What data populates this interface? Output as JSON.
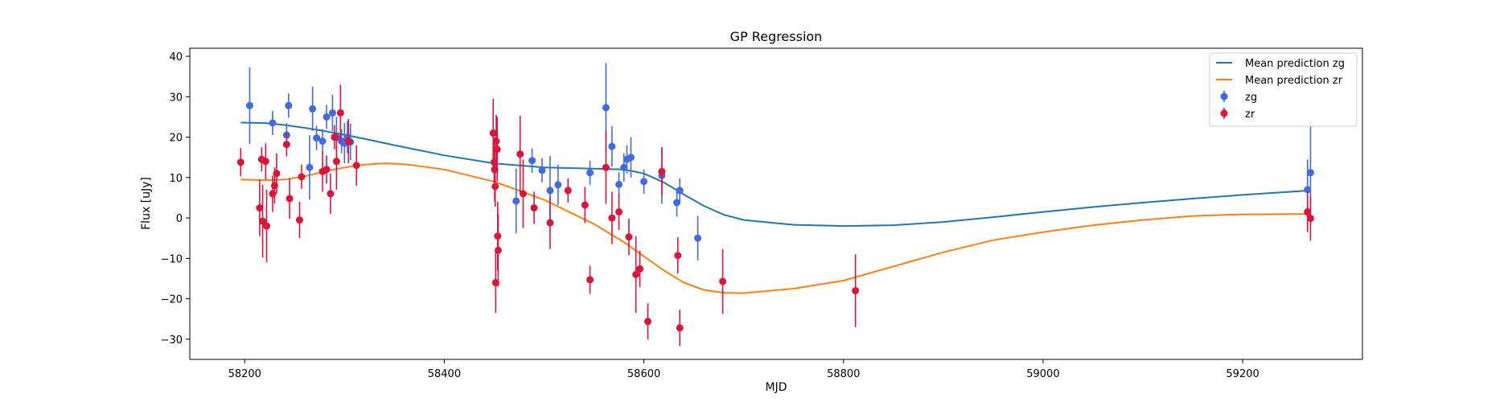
{
  "chart_data": {
    "type": "scatter",
    "title": "GP Regression",
    "xlabel": "MJD",
    "ylabel": "Flux [uJy]",
    "xlim": [
      58145,
      59320
    ],
    "ylim": [
      -35,
      42
    ],
    "x_ticks": [
      58200,
      58400,
      58600,
      58800,
      59000,
      59200
    ],
    "y_ticks": [
      -30,
      -20,
      -10,
      0,
      10,
      20,
      30,
      40
    ],
    "grid": false,
    "legend_position": "top-right",
    "lines": [
      {
        "name": "Mean prediction zg",
        "color": "#1f77b4",
        "x": [
          58196,
          58220,
          58240,
          58260,
          58280,
          58300,
          58320,
          58350,
          58400,
          58450,
          58500,
          58550,
          58580,
          58600,
          58620,
          58640,
          58660,
          58680,
          58700,
          58750,
          58800,
          58850,
          58900,
          58950,
          59000,
          59050,
          59100,
          59150,
          59200,
          59268
        ],
        "y": [
          23.6,
          23.5,
          23.0,
          22.3,
          21.5,
          20.6,
          19.6,
          18.0,
          15.5,
          13.5,
          12.5,
          12.2,
          12.0,
          11.0,
          8.8,
          5.8,
          3.0,
          0.8,
          -0.5,
          -1.7,
          -2.0,
          -1.8,
          -1.0,
          0.2,
          1.5,
          2.7,
          3.8,
          4.8,
          5.7,
          6.8
        ]
      },
      {
        "name": "Mean prediction zr",
        "color": "#ff7f0e",
        "x": [
          58196,
          58220,
          58240,
          58260,
          58280,
          58300,
          58320,
          58340,
          58360,
          58400,
          58450,
          58500,
          58550,
          58580,
          58600,
          58620,
          58640,
          58660,
          58680,
          58700,
          58750,
          58800,
          58850,
          58900,
          58950,
          59000,
          59050,
          59100,
          59150,
          59200,
          59268
        ],
        "y": [
          9.5,
          9.3,
          9.5,
          10.3,
          11.5,
          12.5,
          13.2,
          13.5,
          13.3,
          12.0,
          9.0,
          4.5,
          -1.5,
          -6.0,
          -9.5,
          -13.0,
          -16.0,
          -17.8,
          -18.5,
          -18.6,
          -17.5,
          -15.5,
          -12.0,
          -8.5,
          -5.5,
          -3.5,
          -1.8,
          -0.5,
          0.5,
          0.9,
          1.0
        ]
      }
    ],
    "series": [
      {
        "name": "zg",
        "color": "#4169e1",
        "points": [
          [
            58205,
            27.8,
            9.5
          ],
          [
            58228,
            23.5,
            3.0
          ],
          [
            58242,
            20.5,
            3.0
          ],
          [
            58244,
            27.8,
            3.0
          ],
          [
            58265,
            12.5,
            8.0
          ],
          [
            58268,
            27.0,
            5.5
          ],
          [
            58272,
            19.8,
            3.0
          ],
          [
            58278,
            19.0,
            3.0
          ],
          [
            58282,
            25.0,
            3.0
          ],
          [
            58288,
            26.0,
            4.5
          ],
          [
            58292,
            20.0,
            5.0
          ],
          [
            58297,
            19.0,
            3.0
          ],
          [
            58300,
            18.5,
            5.0
          ],
          [
            58303,
            20.0,
            4.0
          ],
          [
            58306,
            18.8,
            4.5
          ],
          [
            58472,
            4.2,
            8.0
          ],
          [
            58488,
            14.2,
            3.0
          ],
          [
            58498,
            11.8,
            3.0
          ],
          [
            58506,
            6.8,
            8.5
          ],
          [
            58514,
            8.2,
            5.0
          ],
          [
            58546,
            11.2,
            3.0
          ],
          [
            58562,
            27.3,
            11.0
          ],
          [
            58568,
            17.7,
            5.0
          ],
          [
            58575,
            8.3,
            3.0
          ],
          [
            58580,
            12.5,
            3.5
          ],
          [
            58583,
            14.5,
            3.5
          ],
          [
            58587,
            15.0,
            5.0
          ],
          [
            58600,
            9.0,
            3.0
          ],
          [
            58618,
            10.5,
            7.0
          ],
          [
            58633,
            3.8,
            3.5
          ],
          [
            58636,
            6.8,
            3.0
          ],
          [
            58654,
            -5.0,
            5.5
          ],
          [
            59265,
            7.0,
            7.5
          ],
          [
            59268,
            11.2,
            13.0
          ]
        ]
      },
      {
        "name": "zr",
        "color": "#dc143c",
        "points": [
          [
            58196,
            13.8,
            3.5
          ],
          [
            58215,
            2.5,
            7.0
          ],
          [
            58217,
            14.5,
            3.0
          ],
          [
            58218,
            -0.8,
            9.0
          ],
          [
            58221,
            14.0,
            4.5
          ],
          [
            58222,
            -2.0,
            9.0
          ],
          [
            58228,
            6.0,
            4.5
          ],
          [
            58230,
            8.0,
            4.5
          ],
          [
            58232,
            11.0,
            5.0
          ],
          [
            58242,
            18.2,
            3.0
          ],
          [
            58245,
            4.8,
            5.0
          ],
          [
            58255,
            -0.5,
            4.5
          ],
          [
            58257,
            10.2,
            3.0
          ],
          [
            58278,
            11.5,
            5.0
          ],
          [
            58282,
            12.0,
            3.5
          ],
          [
            58286,
            6.0,
            5.0
          ],
          [
            58290,
            20.0,
            3.0
          ],
          [
            58292,
            14.0,
            7.0
          ],
          [
            58296,
            26.0,
            7.0
          ],
          [
            58304,
            19.0,
            5.5
          ],
          [
            58312,
            13.0,
            5.0
          ],
          [
            58449,
            21.0,
            8.5
          ],
          [
            58450,
            13.8,
            5.0
          ],
          [
            58450.5,
            12.0,
            8.0
          ],
          [
            58451,
            7.8,
            5.0
          ],
          [
            58451.5,
            -16.0,
            7.5
          ],
          [
            58452,
            19.0,
            6.5
          ],
          [
            58453,
            17.0,
            8.0
          ],
          [
            58453.5,
            -4.5,
            8.5
          ],
          [
            58454,
            -8.0,
            9.0
          ],
          [
            58476,
            15.8,
            9.5
          ],
          [
            58479,
            6.0,
            8.5
          ],
          [
            58490,
            2.5,
            4.0
          ],
          [
            58506,
            -1.2,
            6.5
          ],
          [
            58524,
            6.8,
            3.0
          ],
          [
            58541,
            3.2,
            4.5
          ],
          [
            58546,
            -15.3,
            3.5
          ],
          [
            58562,
            12.5,
            9.0
          ],
          [
            58568,
            0.0,
            6.5
          ],
          [
            58575,
            1.5,
            4.5
          ],
          [
            58585,
            -4.7,
            4.5
          ],
          [
            58592,
            -14.0,
            9.5
          ],
          [
            58596,
            -12.6,
            4.5
          ],
          [
            58604,
            -25.6,
            4.5
          ],
          [
            58618,
            11.5,
            6.0
          ],
          [
            58634,
            -9.3,
            4.5
          ],
          [
            58636,
            -27.2,
            4.5
          ],
          [
            58679,
            -15.7,
            8.0
          ],
          [
            58812,
            -18.0,
            9.0
          ],
          [
            59265,
            1.5,
            5.0
          ],
          [
            59268,
            -0.1,
            5.5
          ]
        ]
      }
    ],
    "legend": [
      {
        "label": "Mean prediction zg",
        "kind": "line",
        "color": "#1f77b4"
      },
      {
        "label": "Mean prediction zr",
        "kind": "line",
        "color": "#ff7f0e"
      },
      {
        "label": "zg",
        "kind": "errorbar",
        "color": "#4169e1"
      },
      {
        "label": "zr",
        "kind": "errorbar",
        "color": "#dc143c"
      }
    ]
  }
}
